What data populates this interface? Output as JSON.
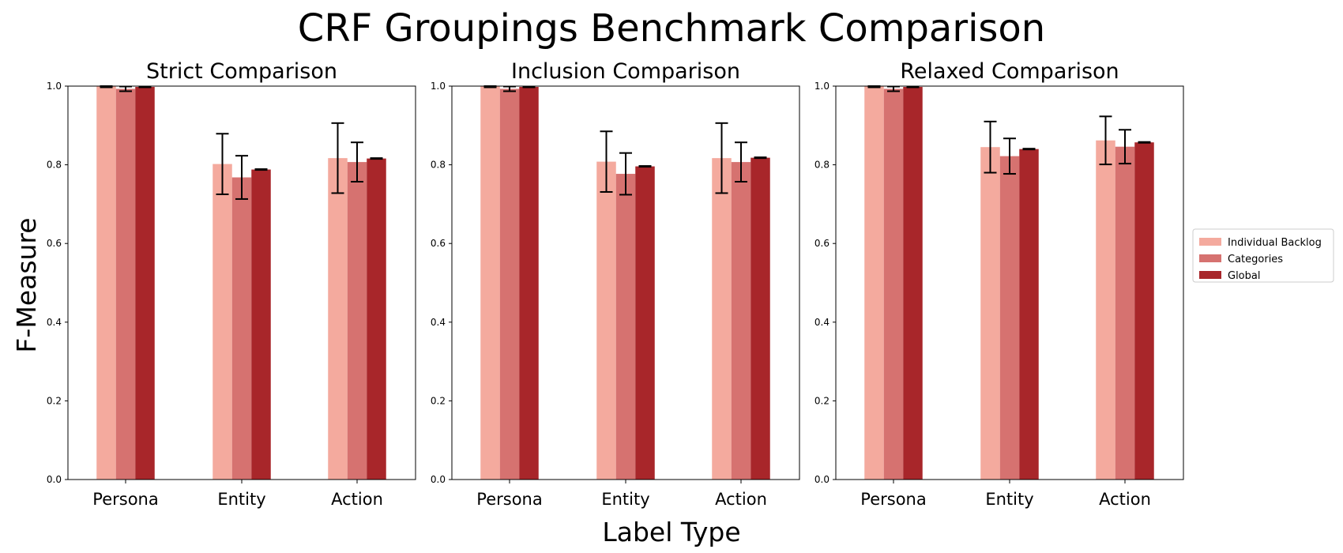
{
  "chart_data": {
    "type": "bar",
    "title": "CRF Groupings Benchmark Comparison",
    "xlabel": "Label Type",
    "ylabel": "F-Measure",
    "ylim": [
      0,
      1.0
    ],
    "yticks": [
      "0.0",
      "0.2",
      "0.4",
      "0.6",
      "0.8",
      "1.0"
    ],
    "categories": [
      "Persona",
      "Entity",
      "Action"
    ],
    "legend": {
      "position": "right",
      "entries": [
        "Individual Backlog",
        "Categories",
        "Global"
      ]
    },
    "colors": [
      "#f4aa9e",
      "#d67270",
      "#a8262a"
    ],
    "panels": [
      {
        "title": "Strict Comparison",
        "series": [
          {
            "name": "Individual Backlog",
            "values": [
              0.999,
              0.802,
              0.817
            ],
            "errors": [
              0.002,
              0.077,
              0.089
            ]
          },
          {
            "name": "Categories",
            "values": [
              0.993,
              0.768,
              0.807
            ],
            "errors": [
              0.006,
              0.055,
              0.05
            ]
          },
          {
            "name": "Global",
            "values": [
              0.998,
              0.788,
              0.816
            ],
            "errors": [
              0.001,
              0.001,
              0.001
            ]
          }
        ]
      },
      {
        "title": "Inclusion Comparison",
        "series": [
          {
            "name": "Individual Backlog",
            "values": [
              0.999,
              0.808,
              0.817
            ],
            "errors": [
              0.002,
              0.077,
              0.089
            ]
          },
          {
            "name": "Categories",
            "values": [
              0.993,
              0.777,
              0.807
            ],
            "errors": [
              0.006,
              0.053,
              0.05
            ]
          },
          {
            "name": "Global",
            "values": [
              0.998,
              0.796,
              0.818
            ],
            "errors": [
              0.001,
              0.001,
              0.001
            ]
          }
        ]
      },
      {
        "title": "Relaxed Comparison",
        "series": [
          {
            "name": "Individual Backlog",
            "values": [
              0.999,
              0.845,
              0.862
            ],
            "errors": [
              0.002,
              0.065,
              0.061
            ]
          },
          {
            "name": "Categories",
            "values": [
              0.993,
              0.822,
              0.846
            ],
            "errors": [
              0.006,
              0.045,
              0.043
            ]
          },
          {
            "name": "Global",
            "values": [
              0.998,
              0.84,
              0.857
            ],
            "errors": [
              0.001,
              0.001,
              0.001
            ]
          }
        ]
      }
    ]
  }
}
